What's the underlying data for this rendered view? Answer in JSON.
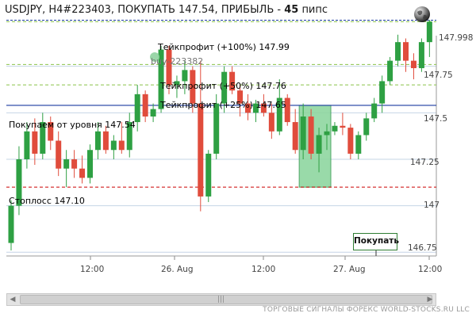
{
  "header": {
    "symbol_tf": "USDJPY, H4#223403,",
    "action": "ПОКУПАТЬ 147.54,",
    "profit_label": "ПРИБЫЛЬ -",
    "profit_value": "45",
    "profit_unit": "пипс"
  },
  "annotations": {
    "tp100": "Тейкпрофит (+100%) 147.99",
    "tp50": "Тейкпрофит (+50%) 147.76",
    "tp25": "Тейкпрофит (+25%) 147.65",
    "buy_id": "buy-223382",
    "entry": "Покупаем от уровня 147.54",
    "stop": "Стоплосс 147.10"
  },
  "buy_button_label": "Покупать",
  "footer": "ТОРГОВЫЕ СИГНАЛЫ ФОРЕКС WORLD-STOCKS.RU LLC",
  "colors": {
    "bull": "#e04c3c",
    "bear": "#2ea043",
    "tp_line": "#8bc34a",
    "entry_line": "#1a3aa0",
    "stop_line": "#cc0000",
    "top_line": "#1a3aa0",
    "highlight": "#8ed6a0"
  },
  "chart_data": {
    "type": "candlestick",
    "symbol": "USDJPY",
    "timeframe": "H4",
    "yticks": [
      "147.998",
      "147.75",
      "147.5",
      "147.25",
      "147",
      "146.75"
    ],
    "ytick_values": [
      147.998,
      147.75,
      147.5,
      147.25,
      147.0,
      146.75
    ],
    "xticks": [
      "12:00",
      "26. Aug",
      "12:00",
      "27. Aug",
      "12:00"
    ],
    "ylim": [
      146.72,
      148.02
    ],
    "levels": {
      "current": 147.998,
      "tp100": 147.99,
      "tp50": 147.76,
      "tp25": 147.65,
      "entry": 147.54,
      "stop": 147.1
    },
    "highlight_zone": {
      "from_candle": 37,
      "to_candle": 40,
      "low": 147.1,
      "high": 147.54
    },
    "candles": [
      {
        "o": 146.8,
        "h": 147.03,
        "l": 146.76,
        "c": 147.0
      },
      {
        "o": 147.0,
        "h": 147.32,
        "l": 146.95,
        "c": 147.25
      },
      {
        "o": 147.25,
        "h": 147.45,
        "l": 147.2,
        "c": 147.4
      },
      {
        "o": 147.4,
        "h": 147.47,
        "l": 147.22,
        "c": 147.28
      },
      {
        "o": 147.28,
        "h": 147.5,
        "l": 147.25,
        "c": 147.45
      },
      {
        "o": 147.45,
        "h": 147.48,
        "l": 147.3,
        "c": 147.35
      },
      {
        "o": 147.35,
        "h": 147.4,
        "l": 147.16,
        "c": 147.2
      },
      {
        "o": 147.2,
        "h": 147.3,
        "l": 147.1,
        "c": 147.25
      },
      {
        "o": 147.25,
        "h": 147.3,
        "l": 147.15,
        "c": 147.2
      },
      {
        "o": 147.2,
        "h": 147.27,
        "l": 147.12,
        "c": 147.15
      },
      {
        "o": 147.15,
        "h": 147.33,
        "l": 147.12,
        "c": 147.3
      },
      {
        "o": 147.3,
        "h": 147.45,
        "l": 147.25,
        "c": 147.4
      },
      {
        "o": 147.4,
        "h": 147.43,
        "l": 147.28,
        "c": 147.3
      },
      {
        "o": 147.3,
        "h": 147.38,
        "l": 147.25,
        "c": 147.35
      },
      {
        "o": 147.35,
        "h": 147.45,
        "l": 147.28,
        "c": 147.3
      },
      {
        "o": 147.3,
        "h": 147.5,
        "l": 147.26,
        "c": 147.45
      },
      {
        "o": 147.45,
        "h": 147.65,
        "l": 147.4,
        "c": 147.6
      },
      {
        "o": 147.6,
        "h": 147.62,
        "l": 147.45,
        "c": 147.48
      },
      {
        "o": 147.48,
        "h": 147.55,
        "l": 147.45,
        "c": 147.52
      },
      {
        "o": 147.52,
        "h": 147.86,
        "l": 147.5,
        "c": 147.84
      },
      {
        "o": 147.84,
        "h": 147.86,
        "l": 147.6,
        "c": 147.65
      },
      {
        "o": 147.65,
        "h": 147.7,
        "l": 147.58,
        "c": 147.67
      },
      {
        "o": 147.67,
        "h": 147.78,
        "l": 147.6,
        "c": 147.73
      },
      {
        "o": 147.73,
        "h": 147.75,
        "l": 147.5,
        "c": 147.55
      },
      {
        "o": 147.55,
        "h": 147.78,
        "l": 146.97,
        "c": 147.05
      },
      {
        "o": 147.05,
        "h": 147.3,
        "l": 147.02,
        "c": 147.28
      },
      {
        "o": 147.28,
        "h": 147.6,
        "l": 147.25,
        "c": 147.55
      },
      {
        "o": 147.55,
        "h": 147.75,
        "l": 147.5,
        "c": 147.72
      },
      {
        "o": 147.72,
        "h": 147.75,
        "l": 147.6,
        "c": 147.62
      },
      {
        "o": 147.62,
        "h": 147.65,
        "l": 147.48,
        "c": 147.55
      },
      {
        "o": 147.55,
        "h": 147.6,
        "l": 147.46,
        "c": 147.5
      },
      {
        "o": 147.5,
        "h": 147.57,
        "l": 147.45,
        "c": 147.55
      },
      {
        "o": 147.55,
        "h": 147.6,
        "l": 147.48,
        "c": 147.5
      },
      {
        "o": 147.5,
        "h": 147.55,
        "l": 147.36,
        "c": 147.4
      },
      {
        "o": 147.4,
        "h": 147.68,
        "l": 147.38,
        "c": 147.58
      },
      {
        "o": 147.58,
        "h": 147.6,
        "l": 147.43,
        "c": 147.45
      },
      {
        "o": 147.45,
        "h": 147.52,
        "l": 147.28,
        "c": 147.3
      },
      {
        "o": 147.3,
        "h": 147.55,
        "l": 147.25,
        "c": 147.48
      },
      {
        "o": 147.48,
        "h": 147.52,
        "l": 147.25,
        "c": 147.28
      },
      {
        "o": 147.28,
        "h": 147.42,
        "l": 147.18,
        "c": 147.38
      },
      {
        "o": 147.38,
        "h": 147.44,
        "l": 147.3,
        "c": 147.4
      },
      {
        "o": 147.4,
        "h": 147.45,
        "l": 147.38,
        "c": 147.43
      },
      {
        "o": 147.43,
        "h": 147.5,
        "l": 147.38,
        "c": 147.42
      },
      {
        "o": 147.42,
        "h": 147.44,
        "l": 147.25,
        "c": 147.28
      },
      {
        "o": 147.28,
        "h": 147.4,
        "l": 147.25,
        "c": 147.38
      },
      {
        "o": 147.38,
        "h": 147.5,
        "l": 147.35,
        "c": 147.47
      },
      {
        "o": 147.47,
        "h": 147.58,
        "l": 147.45,
        "c": 147.55
      },
      {
        "o": 147.55,
        "h": 147.7,
        "l": 147.5,
        "c": 147.67
      },
      {
        "o": 147.67,
        "h": 147.8,
        "l": 147.65,
        "c": 147.78
      },
      {
        "o": 147.78,
        "h": 147.92,
        "l": 147.75,
        "c": 147.88
      },
      {
        "o": 147.88,
        "h": 147.9,
        "l": 147.72,
        "c": 147.78
      },
      {
        "o": 147.78,
        "h": 147.82,
        "l": 147.68,
        "c": 147.74
      },
      {
        "o": 147.74,
        "h": 147.9,
        "l": 147.72,
        "c": 147.88
      },
      {
        "o": 147.88,
        "h": 148.0,
        "l": 147.8,
        "c": 147.99
      }
    ]
  }
}
